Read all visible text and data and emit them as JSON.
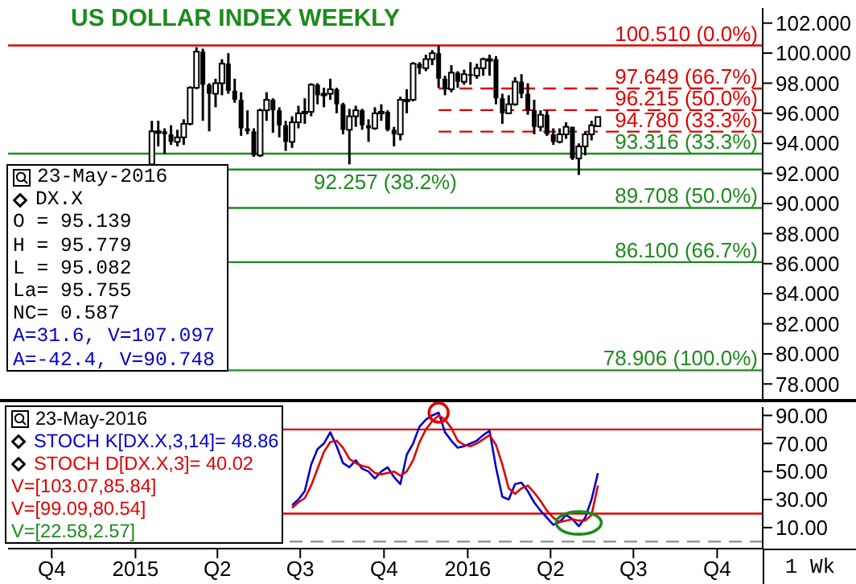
{
  "chart_data": [
    {
      "type": "candlestick",
      "title": "US DOLLAR INDEX WEEKLY",
      "color": "#000000",
      "x": [
        "2015-01-19",
        "2015-01-26",
        "2015-02-02",
        "2015-02-09",
        "2015-02-16",
        "2015-02-23",
        "2015-03-02",
        "2015-03-09",
        "2015-03-16",
        "2015-03-23",
        "2015-03-30",
        "2015-04-06",
        "2015-04-13",
        "2015-04-20",
        "2015-04-27",
        "2015-05-04",
        "2015-05-11",
        "2015-05-18",
        "2015-05-25",
        "2015-06-01",
        "2015-06-08",
        "2015-06-15",
        "2015-06-22",
        "2015-06-29",
        "2015-07-06",
        "2015-07-13",
        "2015-07-20",
        "2015-07-27",
        "2015-08-03",
        "2015-08-10",
        "2015-08-17",
        "2015-08-24",
        "2015-08-31",
        "2015-09-07",
        "2015-09-14",
        "2015-09-21",
        "2015-09-28",
        "2015-10-05",
        "2015-10-12",
        "2015-10-19",
        "2015-10-26",
        "2015-11-02",
        "2015-11-09",
        "2015-11-16",
        "2015-11-23",
        "2015-11-30",
        "2015-12-07",
        "2015-12-14",
        "2015-12-21",
        "2015-12-28",
        "2016-01-04",
        "2016-01-11",
        "2016-01-18",
        "2016-01-25",
        "2016-02-01",
        "2016-02-08",
        "2016-02-15",
        "2016-02-22",
        "2016-02-29",
        "2016-03-07",
        "2016-03-14",
        "2016-03-21",
        "2016-03-28",
        "2016-04-04",
        "2016-04-11",
        "2016-04-18",
        "2016-04-25",
        "2016-05-02",
        "2016-05-09",
        "2016-05-16",
        "2016-05-23"
      ],
      "ohlc": [
        [
          92.6,
          95.5,
          92.5,
          94.8
        ],
        [
          94.8,
          95.5,
          93.8,
          94.8
        ],
        [
          94.8,
          95.0,
          93.3,
          94.6
        ],
        [
          94.6,
          95.2,
          93.9,
          94.1
        ],
        [
          94.1,
          94.9,
          93.8,
          94.4
        ],
        [
          94.4,
          95.6,
          93.9,
          95.3
        ],
        [
          95.3,
          97.8,
          95.2,
          97.7
        ],
        [
          97.7,
          100.4,
          97.6,
          100.1
        ],
        [
          100.1,
          100.3,
          95.5,
          97.9
        ],
        [
          97.9,
          98.0,
          94.8,
          97.3
        ],
        [
          97.3,
          98.3,
          96.4,
          98.0
        ],
        [
          98.0,
          99.6,
          97.2,
          99.3
        ],
        [
          99.3,
          100.0,
          97.3,
          97.5
        ],
        [
          97.5,
          98.3,
          96.7,
          96.9
        ],
        [
          96.9,
          97.4,
          94.5,
          95.0
        ],
        [
          95.0,
          96.2,
          94.6,
          94.8
        ],
        [
          94.8,
          95.0,
          93.1,
          93.2
        ],
        [
          93.2,
          96.3,
          93.1,
          96.2
        ],
        [
          96.2,
          97.4,
          95.5,
          96.9
        ],
        [
          96.9,
          97.0,
          94.7,
          96.2
        ],
        [
          96.2,
          96.4,
          94.4,
          95.2
        ],
        [
          95.2,
          95.5,
          93.5,
          94.1
        ],
        [
          94.1,
          95.8,
          93.7,
          95.4
        ],
        [
          95.4,
          96.5,
          95.0,
          96.0
        ],
        [
          96.0,
          97.0,
          95.3,
          96.1
        ],
        [
          96.1,
          98.0,
          95.8,
          97.9
        ],
        [
          97.9,
          98.0,
          96.6,
          97.2
        ],
        [
          97.2,
          97.7,
          96.4,
          97.3
        ],
        [
          97.3,
          98.3,
          96.9,
          97.6
        ],
        [
          97.6,
          97.7,
          96.0,
          96.6
        ],
        [
          96.6,
          96.7,
          94.6,
          94.9
        ],
        [
          94.9,
          96.3,
          92.6,
          95.8
        ],
        [
          95.8,
          96.5,
          95.1,
          96.2
        ],
        [
          96.2,
          96.3,
          94.9,
          95.2
        ],
        [
          95.2,
          95.6,
          94.1,
          95.0
        ],
        [
          95.0,
          96.4,
          94.9,
          96.0
        ],
        [
          96.0,
          96.6,
          95.5,
          96.1
        ],
        [
          96.1,
          96.2,
          94.8,
          94.9
        ],
        [
          94.9,
          95.1,
          93.8,
          94.6
        ],
        [
          94.6,
          97.1,
          94.2,
          96.9
        ],
        [
          96.9,
          97.6,
          96.0,
          96.9
        ],
        [
          96.9,
          99.4,
          96.8,
          99.3
        ],
        [
          99.3,
          99.4,
          98.6,
          99.0
        ],
        [
          99.0,
          99.9,
          98.8,
          99.6
        ],
        [
          99.6,
          100.2,
          99.2,
          100.0
        ],
        [
          100.0,
          100.5,
          97.7,
          98.3
        ],
        [
          98.3,
          98.5,
          97.2,
          97.6
        ],
        [
          97.6,
          99.2,
          97.4,
          98.7
        ],
        [
          98.7,
          98.8,
          97.7,
          98.1
        ],
        [
          98.1,
          98.9,
          97.9,
          98.6
        ],
        [
          98.6,
          99.4,
          97.9,
          98.5
        ],
        [
          98.5,
          99.3,
          98.3,
          99.0
        ],
        [
          99.0,
          99.7,
          98.5,
          99.6
        ],
        [
          99.6,
          99.9,
          98.5,
          99.6
        ],
        [
          99.6,
          99.8,
          96.6,
          97.0
        ],
        [
          97.0,
          97.3,
          95.3,
          96.0
        ],
        [
          96.0,
          97.2,
          96.0,
          96.6
        ],
        [
          96.6,
          98.4,
          96.5,
          98.1
        ],
        [
          98.1,
          98.6,
          97.0,
          97.3
        ],
        [
          97.3,
          98.0,
          95.9,
          96.2
        ],
        [
          96.2,
          96.9,
          94.6,
          95.1
        ],
        [
          95.1,
          96.2,
          94.8,
          95.9
        ],
        [
          95.9,
          96.2,
          94.5,
          94.6
        ],
        [
          94.6,
          95.0,
          93.9,
          94.1
        ],
        [
          94.1,
          95.0,
          94.0,
          94.6
        ],
        [
          94.6,
          95.4,
          94.3,
          95.1
        ],
        [
          95.1,
          95.1,
          92.9,
          93.0
        ],
        [
          93.0,
          94.0,
          91.9,
          93.8
        ],
        [
          93.8,
          94.8,
          93.2,
          94.6
        ],
        [
          94.6,
          95.5,
          94.2,
          95.2
        ],
        [
          95.139,
          95.779,
          95.082,
          95.755
        ]
      ],
      "xlim": [
        "2014-08-14",
        "2016-11-20"
      ],
      "ylim": [
        77,
        103
      ],
      "yticks": [
        {
          "value": 78,
          "label": "78.000"
        },
        {
          "value": 80,
          "label": "80.000"
        },
        {
          "value": 82,
          "label": "82.000"
        },
        {
          "value": 84,
          "label": "84.000"
        },
        {
          "value": 86,
          "label": "86.000"
        },
        {
          "value": 88,
          "label": "88.000"
        },
        {
          "value": 90,
          "label": "90.000"
        },
        {
          "value": 92,
          "label": "92.000"
        },
        {
          "value": 94,
          "label": "94.000"
        },
        {
          "value": 96,
          "label": "96.000"
        },
        {
          "value": 98,
          "label": "98.000"
        },
        {
          "value": 100,
          "label": "100.000"
        },
        {
          "value": 102,
          "label": "102.000"
        }
      ],
      "tick_labels": "y",
      "ref_lines": [
        {
          "axis": "y",
          "value": 100.51,
          "label": "100.510 (0.0%)",
          "color": "#e00000",
          "line_style": "solid"
        },
        {
          "axis": "y",
          "value": 97.649,
          "label": "97.649 (66.7%)",
          "color": "#e00000",
          "line_style": "dashed"
        },
        {
          "axis": "y",
          "value": 96.215,
          "label": "96.215 (50.0%)",
          "color": "#e00000",
          "line_style": "dashed"
        },
        {
          "axis": "y",
          "value": 94.78,
          "label": "94.780 (33.3%)",
          "color": "#e00000",
          "line_style": "dashed"
        },
        {
          "axis": "y",
          "value": 93.316,
          "label": "93.316 (33.3%)",
          "color": "#1e8a1e",
          "line_style": "solid"
        },
        {
          "axis": "y",
          "value": 92.257,
          "label": "92.257 (38.2%)",
          "color": "#1e8a1e",
          "line_style": "solid"
        },
        {
          "axis": "y",
          "value": 89.708,
          "label": "89.708 (50.0%)",
          "color": "#1e8a1e",
          "line_style": "solid"
        },
        {
          "axis": "y",
          "value": 86.1,
          "label": "86.100 (66.7%)",
          "color": "#1e8a1e",
          "line_style": "solid"
        },
        {
          "axis": "y",
          "value": 78.906,
          "label": "78.906 (100.0%)",
          "color": "#1e8a1e",
          "line_style": "solid"
        }
      ],
      "annotations": [
        "23-May-2016",
        "DX.X",
        "O = 95.139",
        "H = 95.779",
        "L = 95.082",
        "La= 95.755",
        "NC= 0.587",
        "A=31.6, V=107.097",
        "A=-42.4, V=90.748"
      ]
    },
    {
      "type": "line",
      "legend": "top left",
      "series": [
        {
          "name": "STOCH K[DX.X,3,14]= 48.86",
          "color": "#0000cc",
          "x": [
            "2015-06-22",
            "2015-06-29",
            "2015-07-06",
            "2015-07-13",
            "2015-07-20",
            "2015-07-27",
            "2015-08-03",
            "2015-08-10",
            "2015-08-17",
            "2015-08-24",
            "2015-08-31",
            "2015-09-07",
            "2015-09-14",
            "2015-09-21",
            "2015-09-28",
            "2015-10-05",
            "2015-10-12",
            "2015-10-19",
            "2015-10-26",
            "2015-11-02",
            "2015-11-09",
            "2015-11-16",
            "2015-11-23",
            "2015-11-30",
            "2015-12-07",
            "2015-12-14",
            "2015-12-21",
            "2015-12-28",
            "2016-01-04",
            "2016-01-11",
            "2016-01-18",
            "2016-01-25",
            "2016-02-01",
            "2016-02-08",
            "2016-02-15",
            "2016-02-22",
            "2016-02-29",
            "2016-03-07",
            "2016-03-14",
            "2016-03-21",
            "2016-03-28",
            "2016-04-04",
            "2016-04-11",
            "2016-04-18",
            "2016-04-25",
            "2016-05-02",
            "2016-05-09",
            "2016-05-16",
            "2016-05-23"
          ],
          "values": [
            26,
            30,
            36,
            55,
            66,
            70,
            78,
            68,
            56,
            53,
            58,
            52,
            50,
            45,
            50,
            53,
            46,
            41,
            62,
            70,
            82,
            87,
            90,
            92,
            78,
            72,
            67,
            68,
            70,
            72,
            76,
            79,
            53,
            32,
            30,
            41,
            42,
            36,
            28,
            22,
            17,
            12,
            14,
            19,
            16,
            11,
            17,
            30,
            48.86
          ]
        },
        {
          "name": "STOCH D[DX.X,3]= 40.02",
          "color": "#e00000",
          "x": [
            "2015-06-22",
            "2015-06-29",
            "2015-07-06",
            "2015-07-13",
            "2015-07-20",
            "2015-07-27",
            "2015-08-03",
            "2015-08-10",
            "2015-08-17",
            "2015-08-24",
            "2015-08-31",
            "2015-09-07",
            "2015-09-14",
            "2015-09-21",
            "2015-09-28",
            "2015-10-05",
            "2015-10-12",
            "2015-10-19",
            "2015-10-26",
            "2015-11-02",
            "2015-11-09",
            "2015-11-16",
            "2015-11-23",
            "2015-11-30",
            "2015-12-07",
            "2015-12-14",
            "2015-12-21",
            "2015-12-28",
            "2016-01-04",
            "2016-01-11",
            "2016-01-18",
            "2016-01-25",
            "2016-02-01",
            "2016-02-08",
            "2016-02-15",
            "2016-02-22",
            "2016-02-29",
            "2016-03-07",
            "2016-03-14",
            "2016-03-21",
            "2016-03-28",
            "2016-04-04",
            "2016-04-11",
            "2016-04-18",
            "2016-04-25",
            "2016-05-02",
            "2016-05-09",
            "2016-05-16",
            "2016-05-23"
          ],
          "values": [
            24,
            28,
            31,
            40,
            52,
            64,
            71,
            72,
            67,
            59,
            56,
            54,
            53,
            49,
            48,
            49,
            50,
            47,
            50,
            58,
            71,
            80,
            86,
            90,
            87,
            81,
            72,
            69,
            68,
            70,
            73,
            76,
            69,
            55,
            38,
            34,
            38,
            40,
            35,
            29,
            22,
            17,
            14,
            15,
            16,
            15,
            15,
            19,
            40.02
          ]
        }
      ],
      "xlim": [
        "2014-08-14",
        "2016-11-20"
      ],
      "ylim": [
        -5,
        96
      ],
      "xticks": [
        {
          "value": "2014-10-01",
          "label": "Q4"
        },
        {
          "value": "2015-01-01",
          "label": "2015"
        },
        {
          "value": "2015-04-01",
          "label": "Q2"
        },
        {
          "value": "2015-07-01",
          "label": "Q3"
        },
        {
          "value": "2015-10-01",
          "label": "Q4"
        },
        {
          "value": "2016-01-01",
          "label": "2016"
        },
        {
          "value": "2016-04-01",
          "label": "Q2"
        },
        {
          "value": "2016-07-01",
          "label": "Q3"
        },
        {
          "value": "2016-10-01",
          "label": "Q4"
        }
      ],
      "yticks": [
        {
          "value": 10,
          "label": "10.00"
        },
        {
          "value": 30,
          "label": "30.00"
        },
        {
          "value": 50,
          "label": "50.00"
        },
        {
          "value": 70,
          "label": "70.00"
        },
        {
          "value": 90,
          "label": "90.00"
        }
      ],
      "ref_lines": [
        {
          "axis": "y",
          "value": 80,
          "color": "#e00000",
          "line_style": "solid"
        },
        {
          "axis": "y",
          "value": 20,
          "color": "#e00000",
          "line_style": "solid"
        },
        {
          "axis": "y",
          "value": 0,
          "color": "#999999",
          "line_style": "dashed"
        }
      ],
      "annotations": [
        "23-May-2016",
        "V=[103.07,85.84]",
        "V=[99.09,80.54]",
        "V=[22.58,2.57]",
        "1 Wk"
      ]
    }
  ]
}
